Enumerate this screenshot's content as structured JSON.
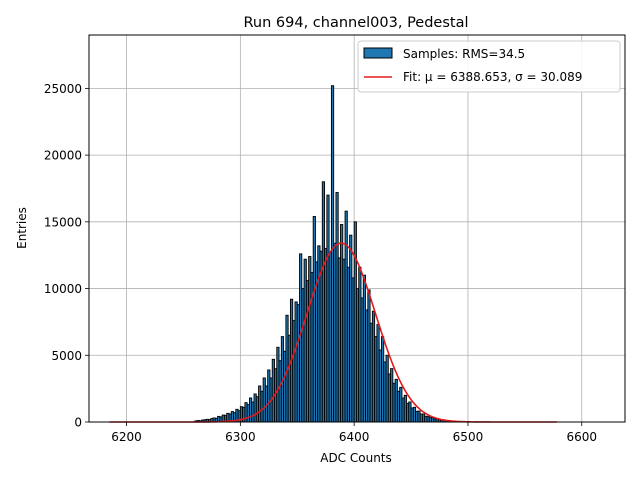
{
  "chart_data": {
    "type": "bar",
    "title": "Run 694, channel003, Pedestal",
    "xlabel": "ADC Counts",
    "ylabel": "Entries",
    "xlim": [
      6167,
      6638
    ],
    "ylim": [
      0,
      29000
    ],
    "xticks": [
      6200,
      6300,
      6400,
      6500,
      6600
    ],
    "yticks": [
      0,
      5000,
      10000,
      15000,
      20000,
      25000
    ],
    "grid": true,
    "legend_position": "top-right",
    "histogram": {
      "name": "Samples: RMS=34.5",
      "bin_width": 2,
      "color": "#1f77b4",
      "edge_color": "#000000",
      "bins": [
        [
          6260,
          80
        ],
        [
          6262,
          110
        ],
        [
          6264,
          90
        ],
        [
          6266,
          150
        ],
        [
          6268,
          170
        ],
        [
          6270,
          200
        ],
        [
          6272,
          180
        ],
        [
          6274,
          260
        ],
        [
          6276,
          300
        ],
        [
          6278,
          280
        ],
        [
          6280,
          420
        ],
        [
          6282,
          380
        ],
        [
          6284,
          520
        ],
        [
          6286,
          500
        ],
        [
          6288,
          650
        ],
        [
          6290,
          600
        ],
        [
          6292,
          780
        ],
        [
          6294,
          700
        ],
        [
          6296,
          950
        ],
        [
          6298,
          850
        ],
        [
          6300,
          1150
        ],
        [
          6302,
          1100
        ],
        [
          6304,
          1450
        ],
        [
          6306,
          1300
        ],
        [
          6308,
          1800
        ],
        [
          6310,
          1500
        ],
        [
          6312,
          2100
        ],
        [
          6314,
          1900
        ],
        [
          6316,
          2700
        ],
        [
          6318,
          2300
        ],
        [
          6320,
          3300
        ],
        [
          6322,
          2700
        ],
        [
          6324,
          3900
        ],
        [
          6326,
          3300
        ],
        [
          6328,
          4700
        ],
        [
          6330,
          4000
        ],
        [
          6332,
          5600
        ],
        [
          6334,
          4600
        ],
        [
          6336,
          6400
        ],
        [
          6338,
          5300
        ],
        [
          6340,
          8000
        ],
        [
          6342,
          6500
        ],
        [
          6344,
          9200
        ],
        [
          6346,
          7600
        ],
        [
          6348,
          9000
        ],
        [
          6350,
          8800
        ],
        [
          6352,
          12600
        ],
        [
          6354,
          10000
        ],
        [
          6356,
          12200
        ],
        [
          6358,
          10600
        ],
        [
          6360,
          12400
        ],
        [
          6362,
          11200
        ],
        [
          6364,
          15400
        ],
        [
          6366,
          12000
        ],
        [
          6368,
          13200
        ],
        [
          6370,
          12800
        ],
        [
          6372,
          18000
        ],
        [
          6374,
          13000
        ],
        [
          6376,
          17000
        ],
        [
          6378,
          12700
        ],
        [
          6380,
          25200
        ],
        [
          6382,
          13400
        ],
        [
          6384,
          17200
        ],
        [
          6386,
          12300
        ],
        [
          6388,
          14800
        ],
        [
          6390,
          12200
        ],
        [
          6392,
          15800
        ],
        [
          6394,
          11600
        ],
        [
          6396,
          14000
        ],
        [
          6398,
          10800
        ],
        [
          6400,
          15000
        ],
        [
          6402,
          10000
        ],
        [
          6404,
          11600
        ],
        [
          6406,
          9300
        ],
        [
          6408,
          11000
        ],
        [
          6410,
          8400
        ],
        [
          6412,
          9900
        ],
        [
          6414,
          7400
        ],
        [
          6416,
          8300
        ],
        [
          6418,
          6400
        ],
        [
          6420,
          7300
        ],
        [
          6422,
          5400
        ],
        [
          6424,
          6400
        ],
        [
          6426,
          4500
        ],
        [
          6428,
          5000
        ],
        [
          6430,
          3600
        ],
        [
          6432,
          4000
        ],
        [
          6434,
          2900
        ],
        [
          6436,
          3200
        ],
        [
          6438,
          2300
        ],
        [
          6440,
          2600
        ],
        [
          6442,
          1800
        ],
        [
          6444,
          2000
        ],
        [
          6446,
          1400
        ],
        [
          6448,
          1500
        ],
        [
          6450,
          1050
        ],
        [
          6452,
          1100
        ],
        [
          6454,
          800
        ],
        [
          6456,
          820
        ],
        [
          6458,
          600
        ],
        [
          6460,
          600
        ],
        [
          6462,
          430
        ],
        [
          6464,
          430
        ],
        [
          6466,
          330
        ],
        [
          6468,
          320
        ],
        [
          6470,
          240
        ],
        [
          6472,
          220
        ],
        [
          6474,
          170
        ],
        [
          6476,
          150
        ],
        [
          6478,
          120
        ],
        [
          6480,
          110
        ],
        [
          6482,
          90
        ],
        [
          6484,
          80
        ],
        [
          6486,
          60
        ],
        [
          6488,
          50
        ],
        [
          6490,
          40
        ],
        [
          6492,
          40
        ],
        [
          6494,
          30
        ],
        [
          6496,
          25
        ],
        [
          6498,
          20
        ]
      ]
    },
    "fit": {
      "name": "Fit: μ = 6388.653, σ = 30.089",
      "type": "gaussian",
      "mu": 6388.653,
      "sigma": 30.089,
      "amplitude": 13400,
      "x_range": [
        6185,
        6578
      ],
      "color": "#e31a1c"
    }
  }
}
